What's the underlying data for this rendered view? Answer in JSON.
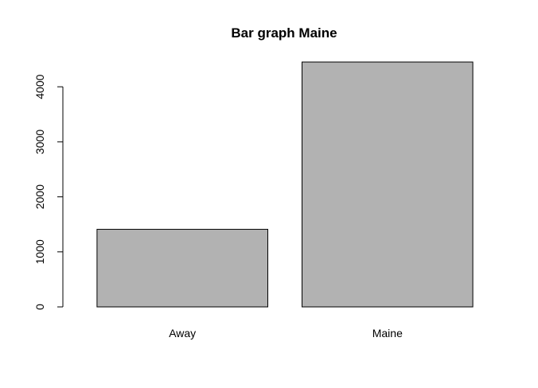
{
  "chart_data": {
    "type": "bar",
    "title": "Bar graph Maine",
    "xlabel": "",
    "ylabel": "",
    "categories": [
      "Away",
      "Maine"
    ],
    "values": [
      1410,
      4450
    ],
    "ylim": [
      0,
      4450
    ],
    "yticks": [
      0,
      1000,
      2000,
      3000,
      4000
    ],
    "ytick_labels": [
      "0",
      "1000",
      "2000",
      "3000",
      "4000"
    ],
    "grid": false,
    "legend": "none",
    "bar_color": "#b2b2b2",
    "bar_border_color": "#000000"
  }
}
